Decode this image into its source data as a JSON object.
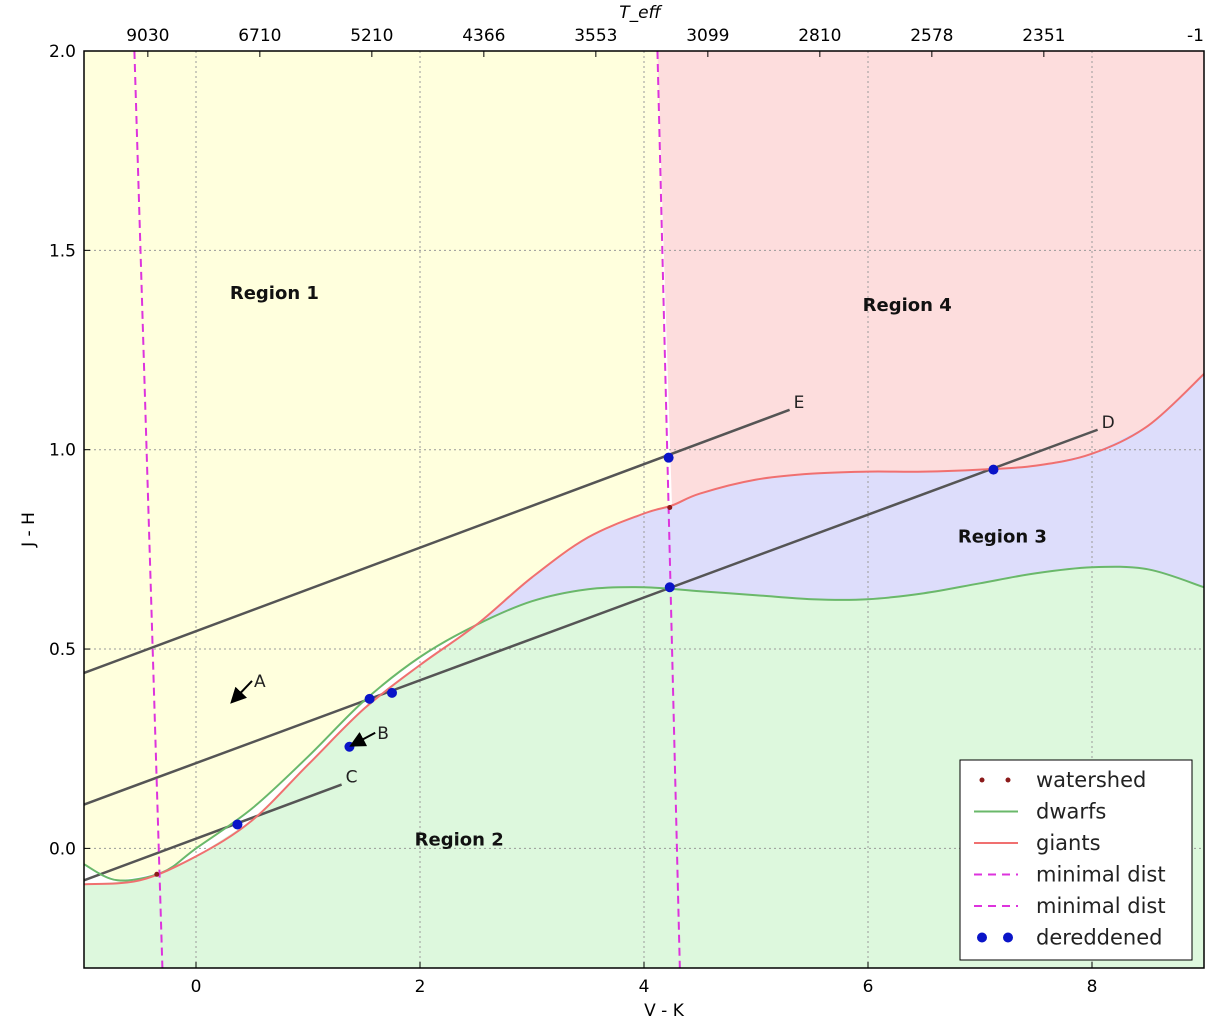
{
  "chart_data": {
    "type": "line",
    "xlabel": "V - K",
    "ylabel": "J - H",
    "top_axis_label": "T_eff",
    "xlim": [
      -1,
      9
    ],
    "ylim": [
      -0.3,
      2.0
    ],
    "x_ticks": [
      0,
      2,
      4,
      6,
      8
    ],
    "y_ticks": [
      0.0,
      0.5,
      1.0,
      1.5,
      2.0
    ],
    "x_tick_labels": [
      "0",
      "2",
      "4",
      "6",
      "8"
    ],
    "y_tick_labels": [
      "0.0",
      "0.5",
      "1.0",
      "1.5",
      "2.0"
    ],
    "top_ticks": [
      {
        "x": -0.43,
        "label": "9030"
      },
      {
        "x": 0.57,
        "label": "6710"
      },
      {
        "x": 1.57,
        "label": "5210"
      },
      {
        "x": 2.57,
        "label": "4366"
      },
      {
        "x": 3.57,
        "label": "3553"
      },
      {
        "x": 4.57,
        "label": "3099"
      },
      {
        "x": 5.57,
        "label": "2810"
      },
      {
        "x": 6.57,
        "label": "2578"
      },
      {
        "x": 7.57,
        "label": "2351"
      },
      {
        "x": 9.0,
        "label": "-1"
      }
    ],
    "grid": true,
    "legend_position": "lower-right",
    "regions": [
      {
        "label": "Region 1",
        "x": 0.7,
        "y": 1.39,
        "color": "#ffffdd"
      },
      {
        "label": "Region 2",
        "x": 2.35,
        "y": 0.02,
        "color": "#ddf8dd"
      },
      {
        "label": "Region 3",
        "x": 7.2,
        "y": 0.78,
        "color": "#ddddfb"
      },
      {
        "label": "Region 4",
        "x": 6.35,
        "y": 1.36,
        "color": "#fddddd"
      }
    ],
    "series": [
      {
        "name": "dwarfs",
        "color": "#6ab86a",
        "x": [
          -1.0,
          -0.7,
          -0.3,
          0.0,
          0.5,
          1.0,
          1.5,
          2.0,
          2.5,
          3.0,
          3.5,
          4.0,
          4.5,
          5.0,
          5.5,
          6.0,
          6.5,
          7.0,
          7.5,
          8.0,
          8.5,
          9.0
        ],
        "y": [
          -0.04,
          -0.08,
          -0.06,
          0.0,
          0.1,
          0.23,
          0.37,
          0.48,
          0.56,
          0.62,
          0.65,
          0.655,
          0.645,
          0.635,
          0.625,
          0.625,
          0.64,
          0.665,
          0.69,
          0.705,
          0.7,
          0.655
        ]
      },
      {
        "name": "giants",
        "color": "#f07070",
        "x": [
          -1.0,
          -0.5,
          0.0,
          0.5,
          1.0,
          1.5,
          2.0,
          2.5,
          3.0,
          3.5,
          4.0,
          4.25,
          4.5,
          5.0,
          5.5,
          6.0,
          6.5,
          7.0,
          7.5,
          8.0,
          8.5,
          9.0
        ],
        "y": [
          -0.09,
          -0.08,
          -0.02,
          0.07,
          0.21,
          0.35,
          0.46,
          0.56,
          0.68,
          0.78,
          0.84,
          0.86,
          0.89,
          0.925,
          0.94,
          0.945,
          0.945,
          0.95,
          0.96,
          0.99,
          1.06,
          1.19
        ]
      }
    ],
    "minimal_dist_lines": [
      {
        "name": "minimal dist",
        "x": [
          -0.55,
          -0.3
        ],
        "y": [
          2.0,
          -0.3
        ],
        "color": "#dd33dd"
      },
      {
        "name": "minimal dist",
        "x": [
          4.12,
          4.32
        ],
        "y": [
          2.0,
          -0.3
        ],
        "color": "#dd33dd"
      }
    ],
    "reddening_lines": [
      {
        "label": "E",
        "x": [
          -1.0,
          5.3
        ],
        "y": [
          0.44,
          1.1
        ]
      },
      {
        "label": "D",
        "x": [
          -1.0,
          8.05
        ],
        "y": [
          0.11,
          1.05
        ]
      },
      {
        "label": "C",
        "x": [
          -1.0,
          1.3
        ],
        "y": [
          -0.08,
          0.16
        ]
      }
    ],
    "arrows": [
      {
        "label": "A",
        "from": [
          0.5,
          0.42
        ],
        "to": [
          0.33,
          0.37
        ]
      },
      {
        "label": "B",
        "from": [
          1.6,
          0.29
        ],
        "to": [
          1.4,
          0.26
        ]
      }
    ],
    "watershed": {
      "name": "watershed",
      "color": "#8b1a1a",
      "points": [
        {
          "x": -0.35,
          "y": -0.065
        },
        {
          "x": 4.23,
          "y": 0.855
        }
      ]
    },
    "dereddened": {
      "name": "dereddened",
      "color": "#0a14c8",
      "points": [
        {
          "x": 4.22,
          "y": 0.98
        },
        {
          "x": 4.23,
          "y": 0.655
        },
        {
          "x": 7.12,
          "y": 0.95
        },
        {
          "x": 1.55,
          "y": 0.375
        },
        {
          "x": 1.75,
          "y": 0.39
        },
        {
          "x": 1.37,
          "y": 0.255
        },
        {
          "x": 0.37,
          "y": 0.06
        }
      ]
    },
    "legend": {
      "entries": [
        {
          "label": "watershed",
          "kind": "marker",
          "color": "#8b1a1a"
        },
        {
          "label": "dwarfs",
          "kind": "line",
          "color": "#6ab86a"
        },
        {
          "label": "giants",
          "kind": "line",
          "color": "#f07070"
        },
        {
          "label": "minimal dist",
          "kind": "dash",
          "color": "#dd33dd"
        },
        {
          "label": "minimal dist",
          "kind": "dash",
          "color": "#dd33dd"
        },
        {
          "label": "dereddened",
          "kind": "dot",
          "color": "#0a14c8"
        }
      ]
    }
  }
}
